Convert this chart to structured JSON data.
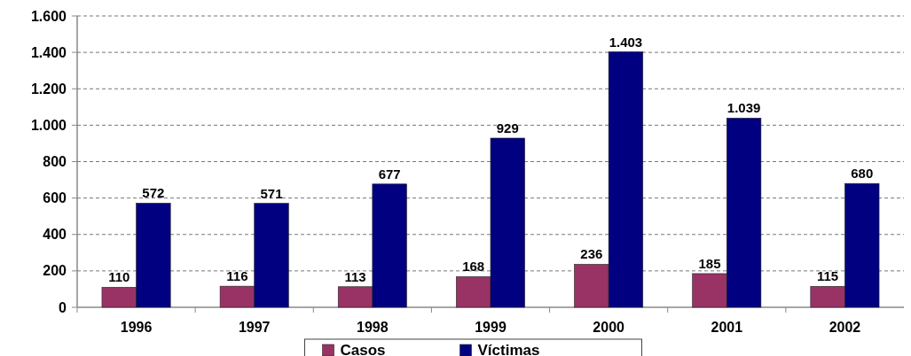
{
  "chart_data": {
    "type": "bar",
    "categories": [
      "1996",
      "1997",
      "1998",
      "1999",
      "2000",
      "2001",
      "2002"
    ],
    "series": [
      {
        "name": "Casos",
        "color": "#993366",
        "values": [
          110,
          116,
          113,
          168,
          236,
          185,
          115
        ],
        "value_labels": [
          "110",
          "116",
          "113",
          "168",
          "236",
          "185",
          "115"
        ]
      },
      {
        "name": "Víctimas",
        "color": "#000080",
        "values": [
          572,
          571,
          677,
          929,
          1403,
          1039,
          680
        ],
        "value_labels": [
          "572",
          "571",
          "677",
          "929",
          "1.403",
          "1.039",
          "680"
        ]
      }
    ],
    "ylim": [
      0,
      1600
    ],
    "yticks": [
      0,
      200,
      400,
      600,
      800,
      {
        "value": 1000,
        "label": "1.000"
      },
      {
        "value": 1200,
        "label": "1.200"
      },
      {
        "value": 1400,
        "label": "1.400"
      },
      {
        "value": 1600,
        "label": "1.600"
      }
    ],
    "grid": "y",
    "legend": "bottom"
  }
}
